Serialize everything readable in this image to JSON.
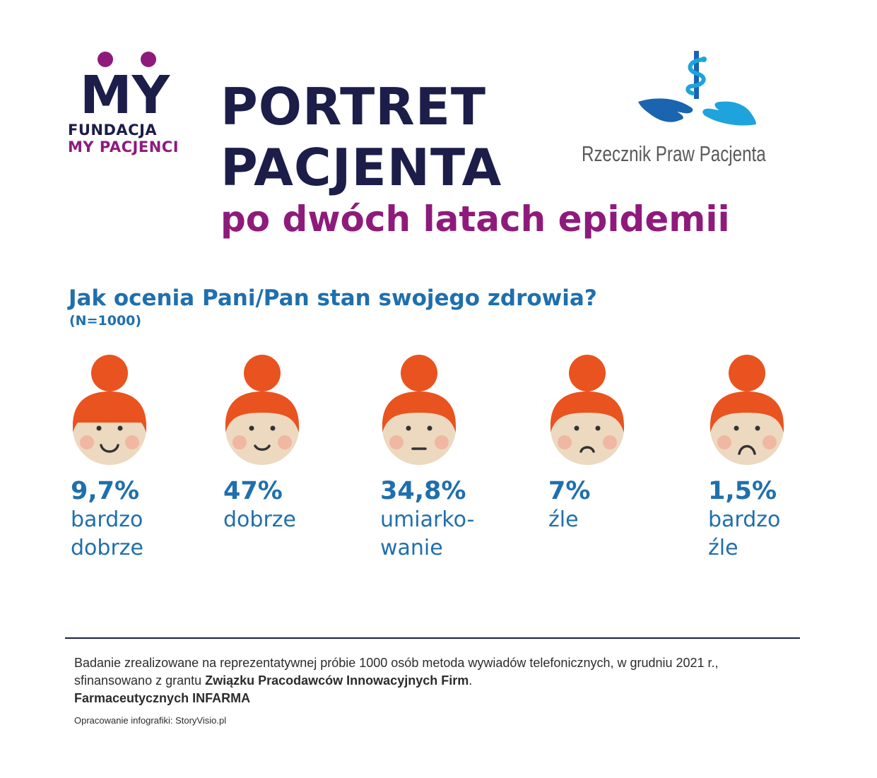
{
  "logo_left": {
    "mark": "MY",
    "line1": "FUNDACJA",
    "line2": "MY PACJENCI"
  },
  "title": {
    "line1": "PORTRET",
    "line2": "PACJENTA",
    "subtitle": "po dwóch latach epidemii"
  },
  "logo_right": {
    "text": "Rzecznik Praw Pacjenta"
  },
  "question": {
    "text": "Jak ocenia Pani/Pan stan swojego zdrowia?",
    "sample": "(N=1000)"
  },
  "results": [
    {
      "value": 9.7,
      "pct_label": "9,7%",
      "label": "bardzo\ndobrze",
      "face": "very-happy"
    },
    {
      "value": 47,
      "pct_label": "47%",
      "label": "dobrze",
      "face": "happy"
    },
    {
      "value": 34.8,
      "pct_label": "34,8%",
      "label": "umiarko-\nwanie",
      "face": "neutral"
    },
    {
      "value": 7,
      "pct_label": "7%",
      "label": "źle",
      "face": "sad"
    },
    {
      "value": 1.5,
      "pct_label": "1,5%",
      "label": "bardzo\nźle",
      "face": "very-sad"
    }
  ],
  "footnote": {
    "part1": "Badanie zrealizowane na reprezentatywnej próbie 1000 osób metoda wywiadów telefonicznych, w grudniu 2021 r., sfinansowano z grantu ",
    "bold1": "Związku Pracodawców Innowacyjnych Firm",
    "part2": ". ",
    "bold2": "Farmaceutycznych INFARMA",
    "credit": "Opracowanie infografiki: StoryVisio.pl"
  },
  "colors": {
    "navy": "#1c1d49",
    "purple": "#8e1b7c",
    "blue": "#1f6fad",
    "hair": "#e9531f",
    "skin": "#ecd9c0",
    "cheek": "#f0b7a2"
  }
}
